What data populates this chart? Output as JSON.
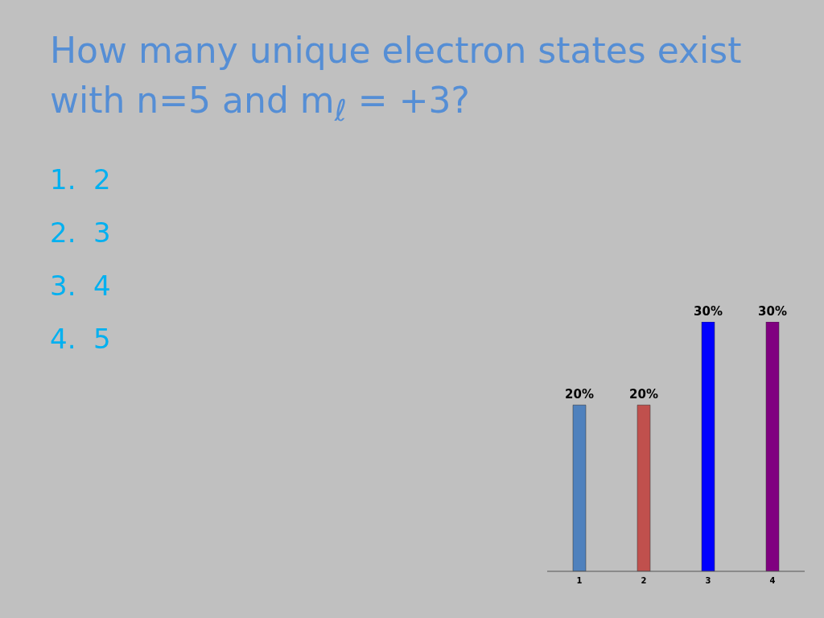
{
  "chart_data": {
    "type": "bar",
    "title": "How many unique electron states exist with n=5 and m$_{ℓ}$ = +3?",
    "annotations": [
      "1.  2",
      "2.  3",
      "3.  4",
      "4.  5"
    ],
    "categories": [
      "1",
      "2",
      "3",
      "4"
    ],
    "values": [
      20,
      20,
      30,
      30
    ],
    "colors": [
      "#4f81bd",
      "#c0504d",
      "#0000ff",
      "#800080"
    ],
    "value_labels": [
      "20%",
      "20%",
      "30%",
      "30%"
    ]
  }
}
